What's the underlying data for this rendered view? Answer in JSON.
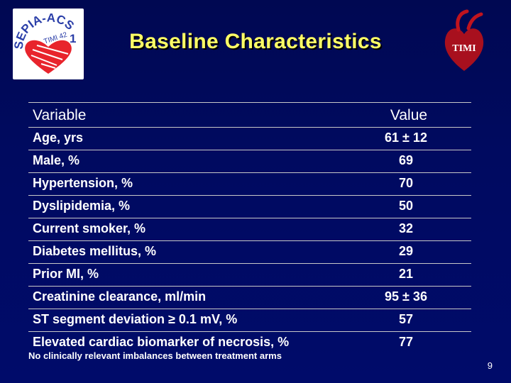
{
  "logos": {
    "left_text_top": "SEPIA-ACS",
    "left_text_num": "1",
    "left_text_sub": "TIMI 42",
    "right_text": "TIMI"
  },
  "slide": {
    "title": "Baseline Characteristics",
    "page_number": "9",
    "footnote": "No clinically relevant imbalances between treatment arms"
  },
  "table": {
    "headers": {
      "variable": "Variable",
      "value": "Value"
    },
    "rows": [
      {
        "variable": "Age, yrs",
        "value": "61 ± 12"
      },
      {
        "variable": "Male, %",
        "value": "69"
      },
      {
        "variable": "Hypertension, %",
        "value": "70"
      },
      {
        "variable": "Dyslipidemia, %",
        "value": "50"
      },
      {
        "variable": "Current smoker, %",
        "value": "32"
      },
      {
        "variable": "Diabetes mellitus, %",
        "value": "29"
      },
      {
        "variable": "Prior MI, %",
        "value": "21"
      },
      {
        "variable": "Creatinine clearance, ml/min",
        "value": "95 ± 36"
      },
      {
        "variable": "ST segment deviation ≥ 0.1 mV, %",
        "value": "57"
      },
      {
        "variable": "Elevated cardiac biomarker of necrosis, %",
        "value": "77"
      }
    ]
  }
}
